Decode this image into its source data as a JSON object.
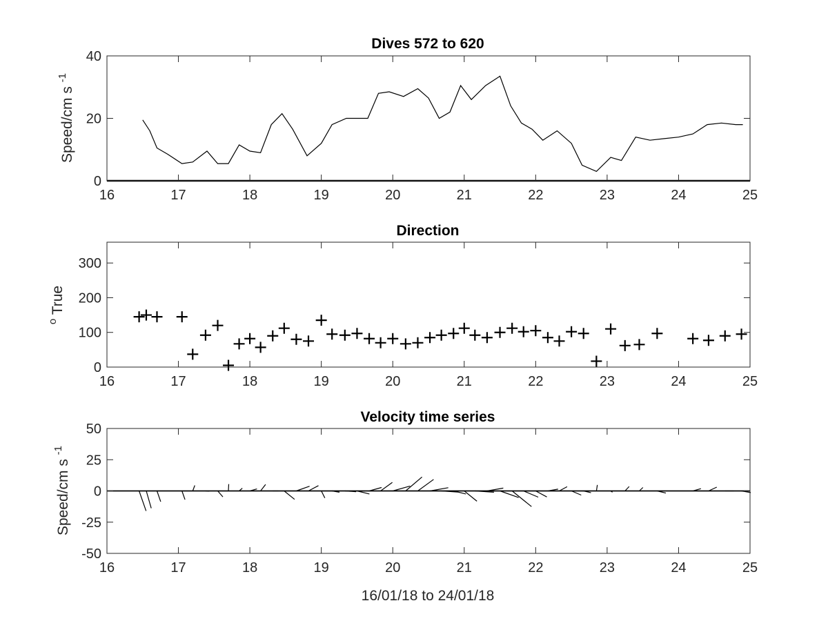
{
  "chart_data": [
    {
      "type": "line",
      "title": "Dives 572 to 620",
      "xlabel": "",
      "ylabel": "Speed/cm s",
      "ylabel_superscript": "-1",
      "xlim": [
        16,
        25
      ],
      "ylim": [
        0,
        40
      ],
      "xticks": [
        16,
        17,
        18,
        19,
        20,
        21,
        22,
        23,
        24,
        25
      ],
      "yticks": [
        0,
        20,
        40
      ],
      "grid": false,
      "zero_line": true,
      "series": [
        {
          "x": [
            16.5,
            16.6,
            16.7,
            16.85,
            17.05,
            17.2,
            17.4,
            17.55,
            17.7,
            17.85,
            18.0,
            18.15,
            18.3,
            18.45,
            18.6,
            18.8,
            19.0,
            19.15,
            19.35,
            19.5,
            19.65,
            19.8,
            19.95,
            20.15,
            20.35,
            20.5,
            20.65,
            20.8,
            20.95,
            21.1,
            21.3,
            21.5,
            21.65,
            21.8,
            21.95,
            22.1,
            22.3,
            22.5,
            22.65,
            22.85,
            23.05,
            23.2,
            23.4,
            23.6,
            23.8,
            24.0,
            24.2,
            24.4,
            24.6,
            24.8,
            24.9
          ],
          "y": [
            19.5,
            16,
            10.5,
            8.5,
            5.5,
            6,
            9.5,
            5.5,
            5.5,
            11.5,
            9.5,
            9,
            18,
            21.5,
            16.5,
            8,
            12,
            18,
            20,
            20,
            20,
            28,
            28.5,
            27,
            29.5,
            26.5,
            20,
            22,
            30.5,
            26,
            30.5,
            33.5,
            24,
            18.5,
            16.5,
            13,
            16,
            12,
            5,
            3,
            7.5,
            6.5,
            14,
            13,
            13.5,
            14,
            15,
            18,
            18.5,
            18,
            18
          ]
        }
      ]
    },
    {
      "type": "scatter",
      "title": "Direction",
      "xlabel": "",
      "ylabel": "True",
      "ylabel_superscript": "o",
      "xlim": [
        16,
        25
      ],
      "ylim": [
        0,
        360
      ],
      "xticks": [
        16,
        17,
        18,
        19,
        20,
        21,
        22,
        23,
        24,
        25
      ],
      "yticks": [
        0,
        100,
        200,
        300
      ],
      "grid": false,
      "marker": "+",
      "series": [
        {
          "x": [
            16.45,
            16.55,
            16.7,
            17.05,
            17.2,
            17.38,
            17.55,
            17.7,
            17.85,
            18.0,
            18.15,
            18.32,
            18.48,
            18.65,
            18.82,
            19.0,
            19.15,
            19.33,
            19.5,
            19.67,
            19.83,
            20.0,
            20.18,
            20.35,
            20.52,
            20.68,
            20.85,
            21.0,
            21.15,
            21.32,
            21.5,
            21.67,
            21.83,
            22.0,
            22.17,
            22.33,
            22.5,
            22.67,
            22.85,
            23.05,
            23.25,
            23.45,
            23.7,
            24.2,
            24.42,
            24.65,
            24.88
          ],
          "y": [
            145,
            150,
            145,
            145,
            37,
            92,
            120,
            5,
            67,
            82,
            57,
            90,
            112,
            80,
            75,
            135,
            95,
            92,
            97,
            82,
            70,
            82,
            67,
            70,
            85,
            92,
            97,
            112,
            92,
            85,
            100,
            112,
            102,
            105,
            85,
            75,
            102,
            97,
            17,
            110,
            62,
            65,
            97,
            82,
            77,
            90,
            95
          ]
        }
      ]
    },
    {
      "type": "quiver",
      "title": "Velocity time series",
      "xlabel": "16/01/18 to 24/01/18",
      "ylabel": "Speed/cm s",
      "ylabel_superscript": "-1",
      "xlim": [
        16,
        25
      ],
      "ylim": [
        -50,
        50
      ],
      "xticks": [
        16,
        17,
        18,
        19,
        20,
        21,
        22,
        23,
        24,
        25
      ],
      "yticks": [
        -50,
        -25,
        0,
        25,
        50
      ],
      "grid": false,
      "vectors_from": "speed_and_direction"
    }
  ]
}
